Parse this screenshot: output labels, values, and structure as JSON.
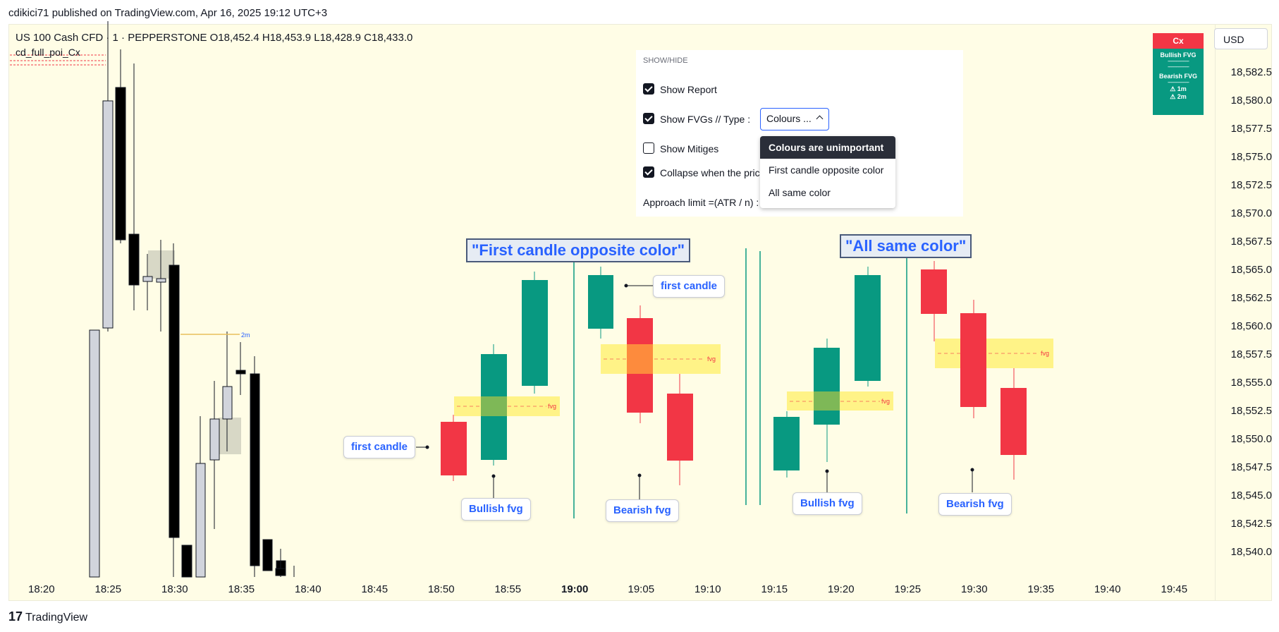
{
  "publish_line": "cdikici71 published on TradingView.com, Apr 16, 2025 19:12 UTC+3",
  "symbol_line": "US 100 Cash CFD · 1 · PEPPERSTONE  O18,452.4  H18,453.9  L18,428.9  C18,433.0",
  "indicator_name": "cd_full_poi_Cx",
  "currency_button": "USD",
  "report": {
    "header": "Cx",
    "bullish": "Bullish FVG",
    "bearish": "Bearish FVG",
    "timeframe_1": "⚠ 1m",
    "timeframe_2": "⚠ 2m",
    "header_color": "#f23645",
    "body_color": "#089981"
  },
  "settings": {
    "section_title": "SHOW/HIDE",
    "show_report": "Show Report",
    "show_fvgs": "Show FVGs //  Type :",
    "show_mitiges": "Show Mitiges",
    "collapse": "Collapse when the pric",
    "approach": "Approach limit =(ATR / n) :",
    "type_value": "Colours ...",
    "options": [
      "Colours are unimportant",
      "First candle opposite color",
      "All same color"
    ]
  },
  "annotations": {
    "heading_1": "\"First candle opposite color\"",
    "heading_2": "\"All same color\"",
    "first_candle_1": "first candle",
    "first_candle_2": "first candle",
    "bullish_1": "Bullish fvg",
    "bearish_1": "Bearish fvg",
    "bullish_2": "Bullish fvg",
    "bearish_2": "Bearish fvg",
    "fvg_tag": "fvg",
    "two_m": "2m"
  },
  "price_axis": [
    "18,582.5",
    "18,580.0",
    "18,577.5",
    "18,575.0",
    "18,572.5",
    "18,570.0",
    "18,567.5",
    "18,565.0",
    "18,562.5",
    "18,560.0",
    "18,557.5",
    "18,555.0",
    "18,552.5",
    "18,550.0",
    "18,547.5",
    "18,545.0",
    "18,542.5",
    "18,540.0"
  ],
  "time_axis": [
    "18:20",
    "18:25",
    "18:30",
    "18:35",
    "18:40",
    "18:45",
    "18:50",
    "18:55",
    "19:00",
    "19:05",
    "19:10",
    "19:15",
    "19:20",
    "19:25",
    "19:30",
    "19:35",
    "19:40",
    "19:45"
  ],
  "brand": "TradingView",
  "colors": {
    "bull": "#089981",
    "bear": "#f23645",
    "fvg": "#fff176",
    "accent": "#2962ff"
  }
}
